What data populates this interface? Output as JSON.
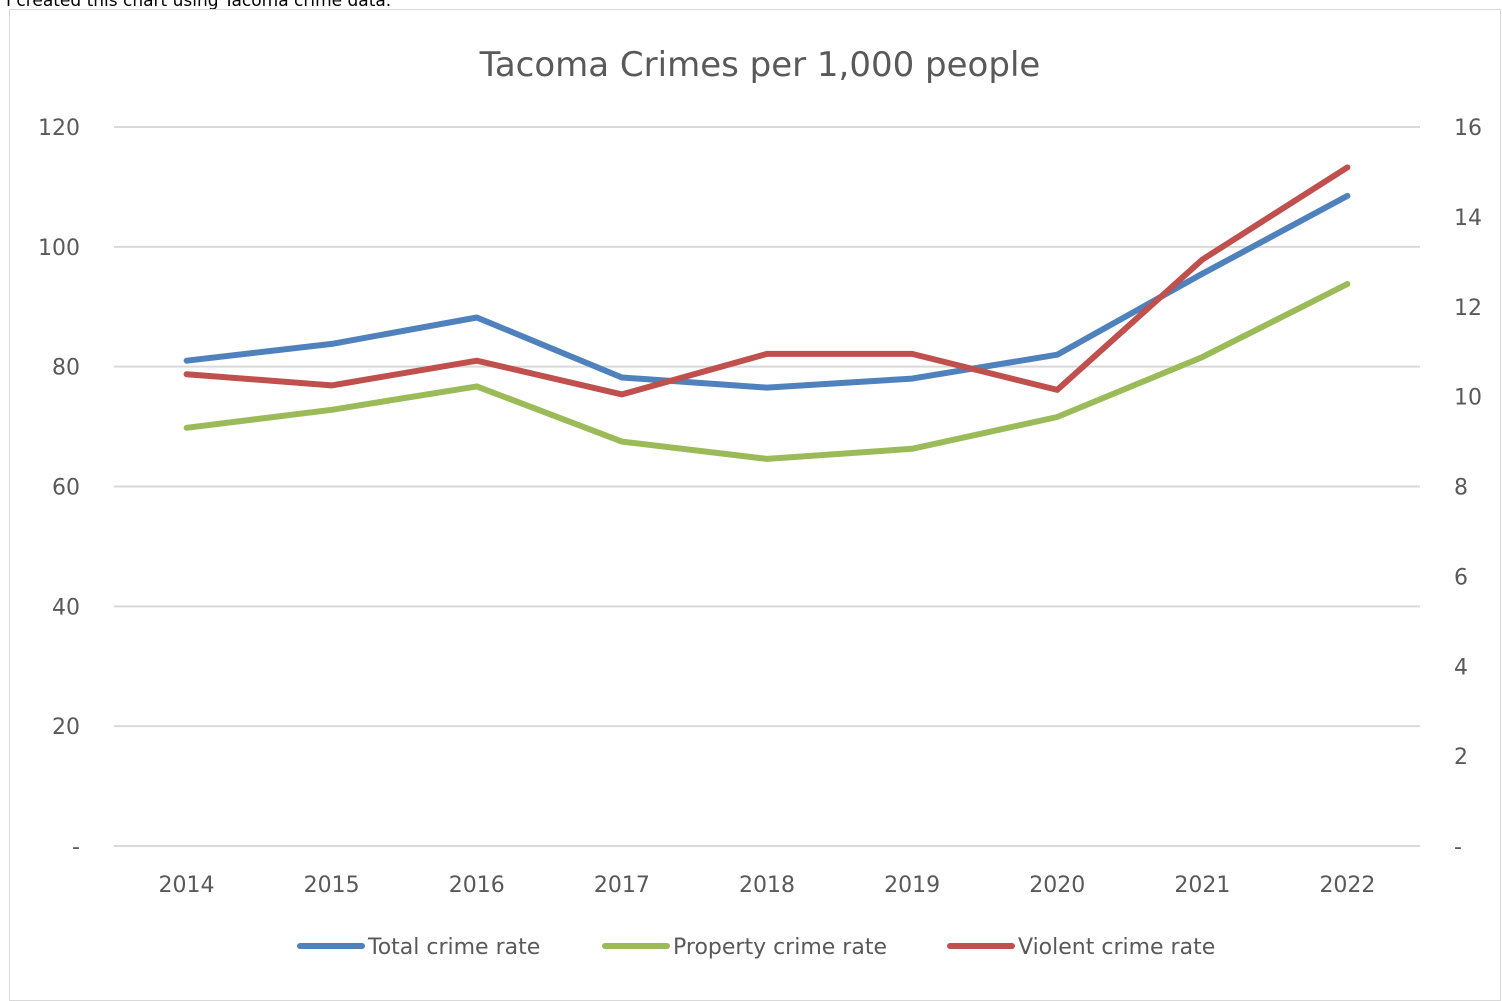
{
  "caption": "I created this chart using Tacoma crime data.",
  "chart_data": {
    "type": "line",
    "title": "Tacoma Crimes per 1,000 people",
    "categories": [
      "2014",
      "2015",
      "2016",
      "2017",
      "2018",
      "2019",
      "2020",
      "2021",
      "2022"
    ],
    "y_left": {
      "ylim": [
        0,
        120
      ],
      "ticks": [
        "-",
        "20",
        "40",
        "60",
        "80",
        "100",
        "120"
      ]
    },
    "y_right": {
      "ylim": [
        0,
        16
      ],
      "ticks": [
        "-",
        "2",
        "4",
        "6",
        "8",
        "10",
        "12",
        "14",
        "16"
      ]
    },
    "grid": true,
    "legend_position": "bottom",
    "series": [
      {
        "name": "Total crime rate",
        "axis": "left",
        "color": "#4f81bd",
        "values": [
          81,
          83.8,
          88.2,
          78.2,
          76.5,
          78,
          82,
          95.5,
          108.5
        ]
      },
      {
        "name": "Property crime rate",
        "axis": "left",
        "color": "#9bbb59",
        "values": [
          69.8,
          72.8,
          76.7,
          67.5,
          64.6,
          66.3,
          71.6,
          81.6,
          93.8
        ]
      },
      {
        "name": "Violent crime rate",
        "axis": "right",
        "color": "#c0504d",
        "values": [
          10.5,
          10.25,
          10.8,
          10.05,
          10.95,
          10.95,
          10.15,
          13.05,
          15.1
        ]
      }
    ]
  }
}
